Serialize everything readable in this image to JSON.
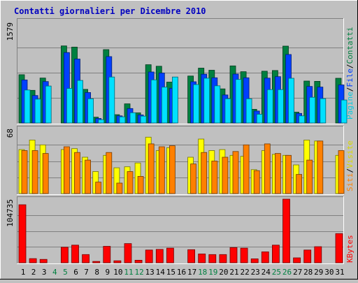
{
  "chart_data": {
    "type": "bar",
    "title": "Contatti giornalieri per Dicembre 2010",
    "categories": [
      "1",
      "2",
      "3",
      "4",
      "5",
      "6",
      "7",
      "8",
      "9",
      "10",
      "11",
      "12",
      "13",
      "14",
      "15",
      "16",
      "17",
      "18",
      "19",
      "20",
      "21",
      "22",
      "23",
      "24",
      "25",
      "26",
      "27",
      "28",
      "29",
      "30",
      "31"
    ],
    "weekend_days": [
      "4",
      "5",
      "11",
      "12",
      "18",
      "19",
      "25",
      "26"
    ],
    "legend": "none",
    "grid": true,
    "panels": [
      {
        "name": "hits-files-pages",
        "ymax_label": "1579",
        "ylim": [
          0,
          1579
        ],
        "legend_labels": [
          "Pagine",
          "File",
          "Contatti"
        ],
        "series": [
          {
            "name": "Contatti",
            "color": "#008040",
            "values": [
              758,
              512,
              705,
              0,
              1210,
              1191,
              527,
              91,
              1151,
              131,
              300,
              159,
              915,
              890,
              642,
              0,
              737,
              861,
              828,
              535,
              896,
              805,
              215,
              812,
              824,
              1206,
              170,
              658,
              653,
              0,
              702
            ]
          },
          {
            "name": "File",
            "color": "#0040ff",
            "values": [
              675,
              431,
              650,
              0,
              1105,
              1003,
              478,
              71,
              1042,
              112,
              227,
              126,
              800,
              784,
              545,
              0,
              647,
              765,
              710,
              440,
              768,
              710,
              188,
              704,
              727,
              1075,
              150,
              573,
              564,
              0,
              598
            ]
          },
          {
            "name": "Pagine",
            "color": "#00e0ff",
            "values": [
              518,
              374,
              580,
              0,
              543,
              668,
              380,
              51,
              722,
              96,
              161,
              108,
              677,
              563,
              722,
              0,
              603,
              703,
              583,
              381,
              683,
              380,
              137,
              524,
              524,
              702,
              112,
              403,
              383,
              0,
              361
            ]
          }
        ]
      },
      {
        "name": "visits-sites",
        "ymax_label": "68",
        "ylim": [
          0,
          68
        ],
        "legend_labels": [
          "Siti",
          "Visite"
        ],
        "series": [
          {
            "name": "Visite",
            "color": "#ffff00",
            "values": [
              46,
              56,
              51,
              0,
              46,
              47,
              38,
              23,
              40,
              27,
              28,
              32,
              59,
              45,
              48,
              0,
              38,
              57,
              45,
              46,
              40,
              39,
              25,
              45,
              41,
              40,
              30,
              56,
              55,
              0,
              40
            ]
          },
          {
            "name": "Siti",
            "color": "#ff8000",
            "values": [
              45,
              45,
              42,
              0,
              49,
              43,
              35,
              12,
              43,
              11,
              23,
              18,
              52,
              49,
              50,
              0,
              31,
              43,
              34,
              38,
              44,
              51,
              24,
              52,
              42,
              40,
              20,
              35,
              55,
              0,
              45
            ]
          }
        ]
      },
      {
        "name": "kbytes",
        "ymax_label": "104735",
        "ylim": [
          0,
          104735
        ],
        "legend_labels": [
          "KBytes"
        ],
        "series": [
          {
            "name": "KBytes",
            "color": "#ff0000",
            "values": [
              95500,
              6800,
              5500,
              0,
              25500,
              29000,
              13500,
              2200,
              27000,
              3200,
              31500,
              4200,
              21000,
              22000,
              24000,
              0,
              21500,
              14500,
              13500,
              13500,
              25000,
              24000,
              6500,
              18000,
              29000,
              104700,
              8000,
              21000,
              26500,
              0,
              48000
            ]
          }
        ]
      }
    ]
  }
}
